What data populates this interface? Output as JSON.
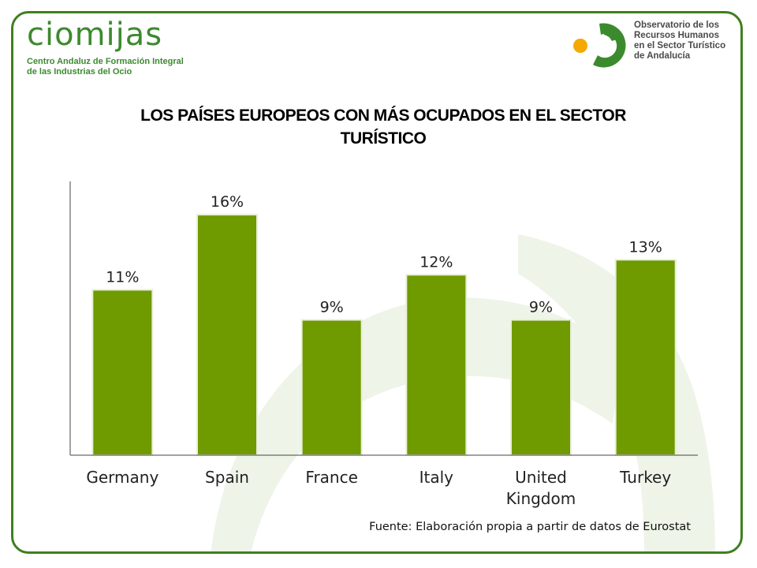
{
  "header": {
    "logo_left_word": "ciomijas",
    "logo_left_sub_line1": "Centro Andaluz de Formación Integral",
    "logo_left_sub_line2": "de las Industrias del Ocio",
    "logo_right_line1": "Observatorio de los",
    "logo_right_line2": "Recursos Humanos",
    "logo_right_line3": "en el Sector Turístico",
    "logo_right_line4": "de Andalucía"
  },
  "colors": {
    "bar": "#6f9a00",
    "frame": "#3f7f1f",
    "logo_green": "#3c8a2e",
    "logo_orange": "#f5a800",
    "background_arc": "#eaf1e3"
  },
  "chart_data": {
    "type": "bar",
    "title_line1": "LOS PAÍSES EUROPEOS CON MÁS OCUPADOS EN EL SECTOR",
    "title_line2": "TURÍSTICO",
    "categories": [
      {
        "line1": "Germany",
        "line2": ""
      },
      {
        "line1": "Spain",
        "line2": ""
      },
      {
        "line1": "France",
        "line2": ""
      },
      {
        "line1": "Italy",
        "line2": ""
      },
      {
        "line1": "United",
        "line2": "Kingdom"
      },
      {
        "line1": "Turkey",
        "line2": ""
      }
    ],
    "values": [
      11,
      16,
      9,
      12,
      9,
      13
    ],
    "value_labels": [
      "11%",
      "16%",
      "9%",
      "12%",
      "9%",
      "13%"
    ],
    "xlabel": "",
    "ylabel": "",
    "ylim": [
      0,
      18
    ],
    "grid": false,
    "legend": "none"
  },
  "footer": {
    "source": "Fuente: Elaboración propia a partir de datos de Eurostat"
  }
}
